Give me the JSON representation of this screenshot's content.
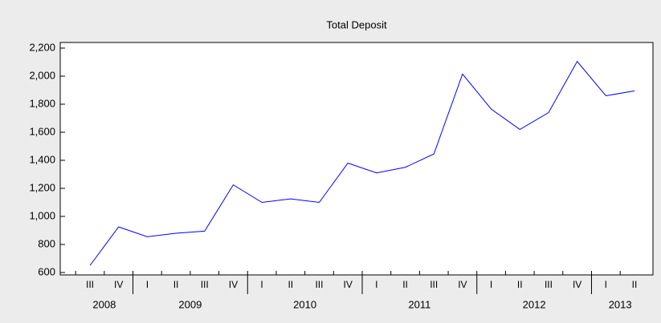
{
  "chart_data": {
    "type": "line",
    "title": "Total Deposit",
    "categories": [
      "III",
      "IV",
      "I",
      "II",
      "III",
      "IV",
      "I",
      "II",
      "III",
      "IV",
      "I",
      "II",
      "III",
      "IV",
      "I",
      "II",
      "III",
      "IV",
      "I",
      "II"
    ],
    "year_labels": [
      "2008",
      "2009",
      "2010",
      "2011",
      "2012",
      "2013"
    ],
    "series": [
      {
        "name": "Total Deposit",
        "color": "#0000ff",
        "values": [
          650,
          925,
          855,
          880,
          895,
          1225,
          1100,
          1125,
          1100,
          1380,
          1310,
          1350,
          1445,
          2015,
          1765,
          1620,
          1740,
          2105,
          1860,
          1895
        ]
      }
    ],
    "ylim": [
      600,
      2200
    ],
    "yticks": [
      600,
      800,
      {
        "value": 1000,
        "label": "1,000"
      },
      {
        "value": 1200,
        "label": "1,200"
      },
      {
        "value": 1400,
        "label": "1,400"
      },
      {
        "value": 1600,
        "label": "1,600"
      },
      {
        "value": 1800,
        "label": "1,800"
      },
      {
        "value": 2000,
        "label": "2,000"
      },
      {
        "value": 2200,
        "label": "2,200"
      }
    ],
    "grid": false
  }
}
